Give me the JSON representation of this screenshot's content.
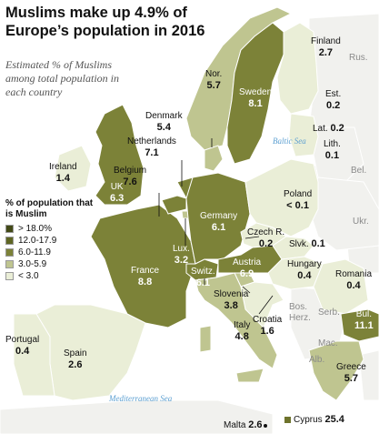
{
  "title": "Muslims make up 4.9% of Europe’s population in 2016",
  "subtitle": "Estimated % of Muslims among total population in each country",
  "legend": {
    "title": "% of population that is Muslim",
    "items": [
      {
        "label": "> 18.0%",
        "color": "#434a17"
      },
      {
        "label": "12.0-17.9",
        "color": "#5f6624"
      },
      {
        "label": "6.0-11.9",
        "color": "#7c8238"
      },
      {
        "label": "3.0-5.9",
        "color": "#bfc590"
      },
      {
        "label": "< 3.0",
        "color": "#eaeed7"
      }
    ]
  },
  "countries": {
    "finland": {
      "name": "Finland",
      "value": "2.7"
    },
    "norway": {
      "name": "Nor.",
      "value": "5.7"
    },
    "sweden": {
      "name": "Sweden",
      "value": "8.1"
    },
    "estonia": {
      "name": "Est.",
      "value": "0.2"
    },
    "latvia": {
      "name": "Lat.",
      "value": "0.2"
    },
    "lithuania": {
      "name": "Lith.",
      "value": "0.1"
    },
    "denmark": {
      "name": "Denmark",
      "value": "5.4"
    },
    "ireland": {
      "name": "Ireland",
      "value": "1.4"
    },
    "uk": {
      "name": "UK",
      "value": "6.3"
    },
    "netherlands": {
      "name": "Netherlands",
      "value": "7.1"
    },
    "belgium": {
      "name": "Belgium",
      "value": "7.6"
    },
    "germany": {
      "name": "Germany",
      "value": "6.1"
    },
    "poland": {
      "name": "Poland",
      "value": "< 0.1"
    },
    "czech": {
      "name": "Czech R.",
      "value": "0.2"
    },
    "slovakia": {
      "name": "Slvk.",
      "value": "0.1"
    },
    "luxembourg": {
      "name": "Lux.",
      "value": "3.2"
    },
    "france": {
      "name": "France",
      "value": "8.8"
    },
    "switzerland": {
      "name": "Switz.",
      "value": "6.1"
    },
    "austria": {
      "name": "Austria",
      "value": "6.9"
    },
    "hungary": {
      "name": "Hungary",
      "value": "0.4"
    },
    "romania": {
      "name": "Romania",
      "value": "0.4"
    },
    "slovenia": {
      "name": "Slovenia",
      "value": "3.8"
    },
    "croatia": {
      "name": "Croatia",
      "value": "1.6"
    },
    "italy": {
      "name": "Italy",
      "value": "4.8"
    },
    "portugal": {
      "name": "Portugal",
      "value": "0.4"
    },
    "spain": {
      "name": "Spain",
      "value": "2.6"
    },
    "bulgaria": {
      "name": "Bul.",
      "value": "11.1"
    },
    "greece": {
      "name": "Greece",
      "value": "5.7"
    },
    "malta": {
      "name": "Malta",
      "value": "2.6"
    },
    "cyprus": {
      "name": "Cyprus",
      "value": "25.4"
    }
  },
  "non_data_labels": {
    "russia": "Rus.",
    "belarus": "Bel.",
    "ukraine": "Ukr.",
    "serbia": "Serb.",
    "bosnia": "Bos.",
    "herzegovina": "Herz.",
    "macedonia": "Mac.",
    "albania": "Alb."
  },
  "seas": {
    "baltic": "Baltic Sea",
    "mediterranean": "Mediterranean Sea"
  }
}
